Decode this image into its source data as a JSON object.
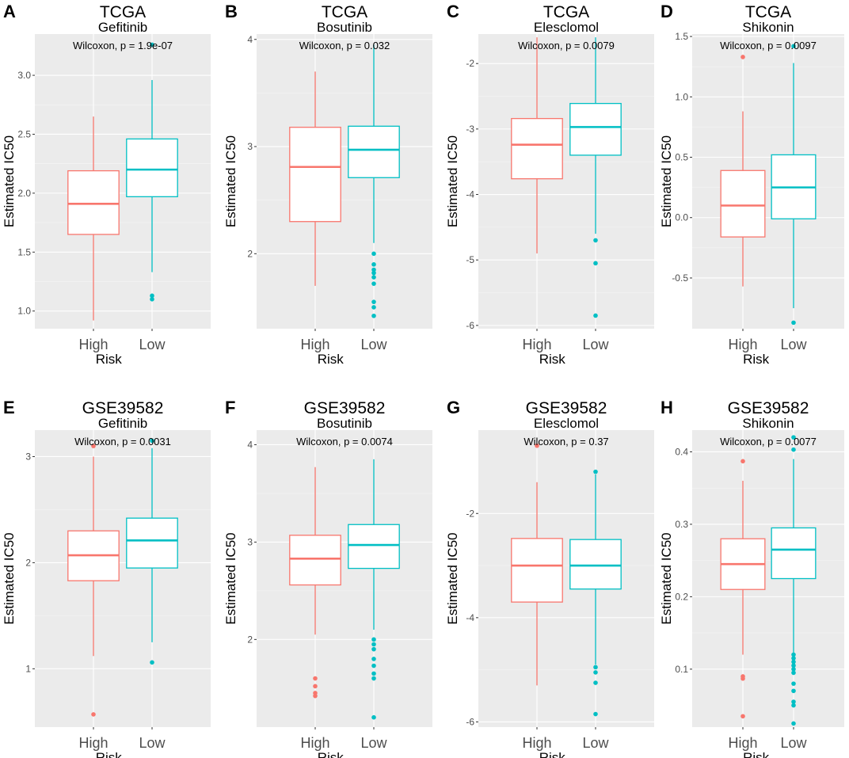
{
  "colors": {
    "high": "#F8766D",
    "low": "#00BFC4",
    "panel_bg": "#EBEBEB",
    "grid": "#FFFFFF"
  },
  "chart_data": [
    {
      "id": "A",
      "type": "boxplot",
      "dataset": "TCGA",
      "drug": "Gefitinib",
      "pvalue": "Wilcoxon, p = 1.9e-07",
      "xlabel": "Risk",
      "ylabel": "Estimated IC50",
      "categories": [
        "High",
        "Low"
      ],
      "ylim": [
        0.85,
        3.35
      ],
      "yticks": [
        1.0,
        1.5,
        2.0,
        2.5,
        3.0
      ],
      "ytick_labels": [
        "1.0",
        "1.5",
        "2.0",
        "2.5",
        "3.0"
      ],
      "boxes": [
        {
          "group": "High",
          "whisker_low": 0.92,
          "q1": 1.65,
          "median": 1.91,
          "q3": 2.19,
          "whisker_high": 2.65,
          "outliers": []
        },
        {
          "group": "Low",
          "whisker_low": 1.33,
          "q1": 1.97,
          "median": 2.2,
          "q3": 2.46,
          "whisker_high": 2.96,
          "outliers": [
            1.1,
            1.13,
            3.26
          ]
        }
      ]
    },
    {
      "id": "B",
      "type": "boxplot",
      "dataset": "TCGA",
      "drug": "Bosutinib",
      "pvalue": "Wilcoxon, p = 0.032",
      "xlabel": "Risk",
      "ylabel": "Estimated IC50",
      "categories": [
        "High",
        "Low"
      ],
      "ylim": [
        1.3,
        4.05
      ],
      "yticks": [
        2,
        3,
        4
      ],
      "ytick_labels": [
        "2",
        "3",
        "4"
      ],
      "boxes": [
        {
          "group": "High",
          "whisker_low": 1.7,
          "q1": 2.3,
          "median": 2.81,
          "q3": 3.18,
          "whisker_high": 3.7,
          "outliers": []
        },
        {
          "group": "Low",
          "whisker_low": 2.1,
          "q1": 2.71,
          "median": 2.97,
          "q3": 3.19,
          "whisker_high": 3.95,
          "outliers": [
            1.42,
            1.5,
            1.55,
            1.72,
            1.78,
            1.82,
            1.85,
            1.9,
            2.0
          ]
        }
      ]
    },
    {
      "id": "C",
      "type": "boxplot",
      "dataset": "TCGA",
      "drug": "Elesclomol",
      "pvalue": "Wilcoxon, p = 0.0079",
      "xlabel": "Risk",
      "ylabel": "Estimated IC50",
      "categories": [
        "High",
        "Low"
      ],
      "ylim": [
        -6.05,
        -1.55
      ],
      "yticks": [
        -6,
        -5,
        -4,
        -3,
        -2
      ],
      "ytick_labels": [
        "-6",
        "-5",
        "-4",
        "-3",
        "-2"
      ],
      "boxes": [
        {
          "group": "High",
          "whisker_low": -4.9,
          "q1": -3.76,
          "median": -3.24,
          "q3": -2.84,
          "whisker_high": -1.6,
          "outliers": []
        },
        {
          "group": "Low",
          "whisker_low": -4.6,
          "q1": -3.4,
          "median": -2.97,
          "q3": -2.61,
          "whisker_high": -1.6,
          "outliers": [
            -4.7,
            -5.05,
            -5.85
          ]
        }
      ]
    },
    {
      "id": "D",
      "type": "boxplot",
      "dataset": "TCGA",
      "drug": "Shikonin",
      "pvalue": "Wilcoxon, p = 0.0097",
      "xlabel": "Risk",
      "ylabel": "Estimated IC50",
      "categories": [
        "High",
        "Low"
      ],
      "ylim": [
        -0.92,
        1.52
      ],
      "yticks": [
        -0.5,
        0.0,
        0.5,
        1.0,
        1.5
      ],
      "ytick_labels": [
        "-0.5",
        "0.0",
        "0.5",
        "1.0",
        "1.5"
      ],
      "boxes": [
        {
          "group": "High",
          "whisker_low": -0.57,
          "q1": -0.16,
          "median": 0.1,
          "q3": 0.39,
          "whisker_high": 0.88,
          "outliers": [
            1.33
          ]
        },
        {
          "group": "Low",
          "whisker_low": -0.75,
          "q1": -0.01,
          "median": 0.25,
          "q3": 0.52,
          "whisker_high": 1.28,
          "outliers": [
            -0.87,
            1.42
          ]
        }
      ]
    },
    {
      "id": "E",
      "type": "boxplot",
      "dataset": "GSE39582",
      "drug": "Gefitinib",
      "pvalue": "Wilcoxon, p = 0.0031",
      "xlabel": "Risk",
      "ylabel": "Estimated IC50",
      "categories": [
        "High",
        "Low"
      ],
      "ylim": [
        0.45,
        3.25
      ],
      "yticks": [
        1,
        2,
        3
      ],
      "ytick_labels": [
        "1",
        "2",
        "3"
      ],
      "boxes": [
        {
          "group": "High",
          "whisker_low": 1.12,
          "q1": 1.83,
          "median": 2.07,
          "q3": 2.3,
          "whisker_high": 3.0,
          "outliers": [
            0.57,
            3.1
          ]
        },
        {
          "group": "Low",
          "whisker_low": 1.25,
          "q1": 1.95,
          "median": 2.21,
          "q3": 2.42,
          "whisker_high": 3.08,
          "outliers": [
            1.06,
            3.15
          ]
        }
      ]
    },
    {
      "id": "F",
      "type": "boxplot",
      "dataset": "GSE39582",
      "drug": "Bosutinib",
      "pvalue": "Wilcoxon, p = 0.0074",
      "xlabel": "Risk",
      "ylabel": "Estimated IC50",
      "categories": [
        "High",
        "Low"
      ],
      "ylim": [
        1.1,
        4.15
      ],
      "yticks": [
        2,
        3,
        4
      ],
      "ytick_labels": [
        "2",
        "3",
        "4"
      ],
      "boxes": [
        {
          "group": "High",
          "whisker_low": 2.05,
          "q1": 2.56,
          "median": 2.83,
          "q3": 3.07,
          "whisker_high": 3.77,
          "outliers": [
            1.42,
            1.45,
            1.52,
            1.6
          ]
        },
        {
          "group": "Low",
          "whisker_low": 2.1,
          "q1": 2.73,
          "median": 2.97,
          "q3": 3.18,
          "whisker_high": 3.85,
          "outliers": [
            1.2,
            1.6,
            1.65,
            1.73,
            1.8,
            1.9,
            1.95,
            2.0
          ]
        }
      ]
    },
    {
      "id": "G",
      "type": "boxplot",
      "dataset": "GSE39582",
      "drug": "Elesclomol",
      "pvalue": "Wilcoxon, p = 0.37",
      "xlabel": "Risk",
      "ylabel": "Estimated IC50",
      "categories": [
        "High",
        "Low"
      ],
      "ylim": [
        -6.1,
        -0.4
      ],
      "yticks": [
        -6,
        -4,
        -2
      ],
      "ytick_labels": [
        "-6",
        "-4",
        "-2"
      ],
      "boxes": [
        {
          "group": "High",
          "whisker_low": -5.3,
          "q1": -3.7,
          "median": -3.0,
          "q3": -2.48,
          "whisker_high": -1.4,
          "outliers": [
            -0.7
          ]
        },
        {
          "group": "Low",
          "whisker_low": -4.9,
          "q1": -3.45,
          "median": -3.0,
          "q3": -2.5,
          "whisker_high": -1.25,
          "outliers": [
            -1.2,
            -4.95,
            -5.05,
            -5.25,
            -5.85
          ]
        }
      ]
    },
    {
      "id": "H",
      "type": "boxplot",
      "dataset": "GSE39582",
      "drug": "Shikonin",
      "pvalue": "Wilcoxon, p = 0.0077",
      "xlabel": "Risk",
      "ylabel": "Estimated IC50",
      "categories": [
        "High",
        "Low"
      ],
      "ylim": [
        0.02,
        0.43
      ],
      "yticks": [
        0.1,
        0.2,
        0.3,
        0.4
      ],
      "ytick_labels": [
        "0.1",
        "0.2",
        "0.3",
        "0.4"
      ],
      "boxes": [
        {
          "group": "High",
          "whisker_low": 0.12,
          "q1": 0.21,
          "median": 0.245,
          "q3": 0.28,
          "whisker_high": 0.36,
          "outliers": [
            0.035,
            0.087,
            0.09,
            0.387
          ]
        },
        {
          "group": "Low",
          "whisker_low": 0.12,
          "q1": 0.225,
          "median": 0.265,
          "q3": 0.295,
          "whisker_high": 0.39,
          "outliers": [
            0.025,
            0.05,
            0.055,
            0.07,
            0.08,
            0.095,
            0.1,
            0.105,
            0.11,
            0.115,
            0.12,
            0.403,
            0.42
          ]
        }
      ]
    }
  ]
}
